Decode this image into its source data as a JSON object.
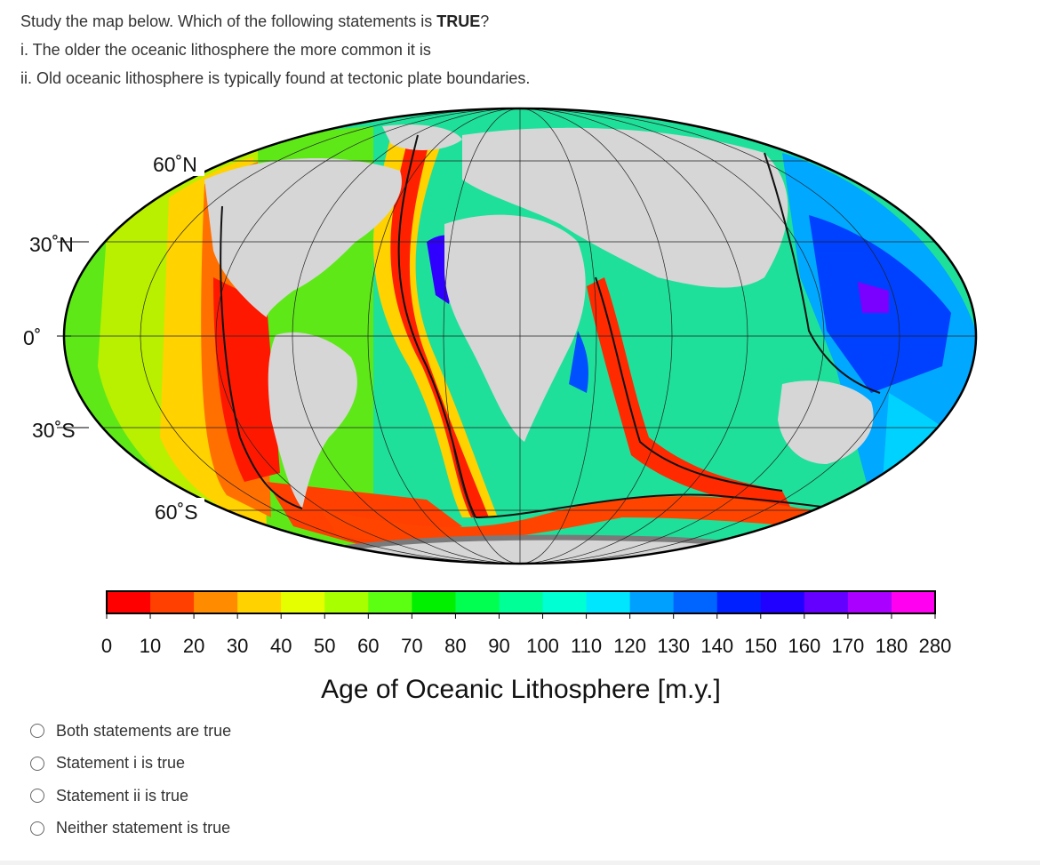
{
  "question": {
    "prompt_prefix": "Study the map below. Which of the following statements is ",
    "prompt_emphasis": "TRUE",
    "prompt_suffix": "?",
    "statement_1": "i. The older the oceanic lithosphere the more common it is",
    "statement_2": "ii. Old oceanic lithosphere is typically found at tectonic plate boundaries."
  },
  "map": {
    "lat_labels": {
      "n60": "60˚N",
      "n30": "30˚N",
      "eq": "0˚",
      "s30": "30˚S",
      "s60": "60˚S"
    },
    "colors": {
      "land": "#d6d6d6",
      "shelf": "#7a7a7a",
      "boundary": "#111111"
    }
  },
  "colorbar": {
    "title": "Age of Oceanic Lithosphere [m.y.]",
    "ticks": [
      "0",
      "10",
      "20",
      "30",
      "40",
      "50",
      "60",
      "70",
      "80",
      "90",
      "100",
      "110",
      "120",
      "130",
      "140",
      "150",
      "160",
      "170",
      "180",
      "280"
    ],
    "colors": [
      "#ff0000",
      "#ff4000",
      "#ff8c00",
      "#ffd200",
      "#e6ff00",
      "#a8ff00",
      "#5cff12",
      "#00f000",
      "#00ff50",
      "#00ff96",
      "#00ffd2",
      "#00e6ff",
      "#00a0ff",
      "#0064ff",
      "#0020ff",
      "#2000ff",
      "#6400ff",
      "#aa00ff",
      "#ff00f0"
    ]
  },
  "options": [
    {
      "label": "Both statements are true"
    },
    {
      "label": "Statement i is true"
    },
    {
      "label": "Statement ii is true"
    },
    {
      "label": "Neither statement is true"
    }
  ]
}
